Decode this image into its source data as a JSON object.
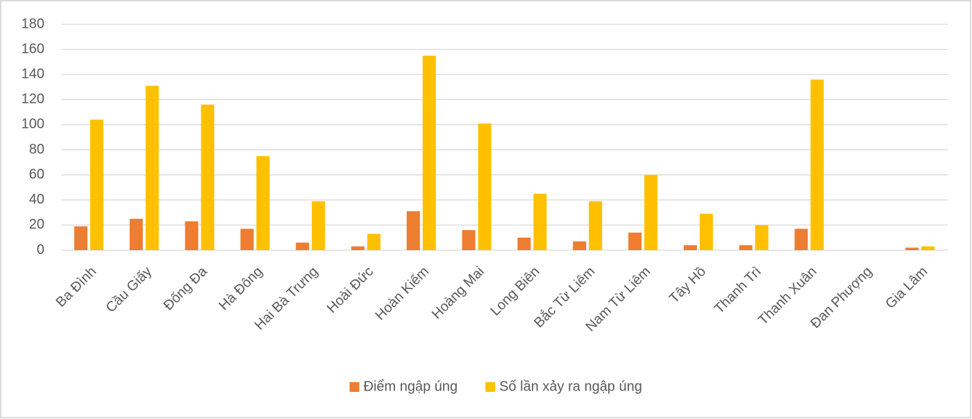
{
  "chart_data": {
    "type": "bar",
    "categories": [
      "Ba Đình",
      "Cầu Giấy",
      "Đống Đa",
      "Hà Đông",
      "Hai Bà Trưng",
      "Hoài Đức",
      "Hoàn Kiếm",
      "Hoàng Mai",
      "Long Biên",
      "Bắc Từ Liêm",
      "Nam Từ Liêm",
      "Tây Hồ",
      "Thanh Trì",
      "Thanh Xuân",
      "Đan Phượng",
      "Gia Lâm"
    ],
    "series": [
      {
        "name": "Điểm ngập úng",
        "color": "#ed7d31",
        "values": [
          19,
          25,
          23,
          17,
          6,
          3,
          31,
          16,
          10,
          7,
          14,
          4,
          4,
          17,
          0,
          2
        ]
      },
      {
        "name": "Số lần xảy ra ngập úng",
        "color": "#ffc000",
        "values": [
          104,
          131,
          116,
          75,
          39,
          13,
          155,
          101,
          45,
          39,
          60,
          29,
          20,
          136,
          0,
          3
        ]
      }
    ],
    "ylim": [
      0,
      180
    ],
    "yticks": [
      0,
      20,
      40,
      60,
      80,
      100,
      120,
      140,
      160,
      180
    ],
    "grid": true,
    "legend": "bottom"
  }
}
